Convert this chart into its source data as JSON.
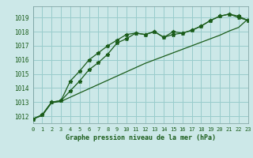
{
  "title": "Graphe pression niveau de la mer (hPa)",
  "bg_color": "#cce8e8",
  "grid_color": "#99cccc",
  "line_color": "#1a5c1a",
  "x_ticks": [
    0,
    1,
    2,
    3,
    4,
    5,
    6,
    7,
    8,
    9,
    10,
    11,
    12,
    13,
    14,
    15,
    16,
    17,
    18,
    19,
    20,
    21,
    22,
    23
  ],
  "ylim": [
    1011.5,
    1019.8
  ],
  "xlim": [
    0,
    23
  ],
  "y_ticks": [
    1012,
    1013,
    1014,
    1015,
    1016,
    1017,
    1018,
    1019
  ],
  "series1": [
    1011.8,
    1012.1,
    1013.0,
    1013.1,
    1013.8,
    1014.5,
    1015.3,
    1015.8,
    1016.4,
    1017.2,
    1017.5,
    1017.9,
    1017.8,
    1018.0,
    1017.6,
    1018.0,
    1017.9,
    1018.1,
    1018.4,
    1018.8,
    1019.1,
    1019.25,
    1019.0,
    1018.8
  ],
  "series2": [
    1011.8,
    1012.1,
    1013.0,
    1013.1,
    1014.5,
    1015.2,
    1016.0,
    1016.5,
    1017.0,
    1017.4,
    1017.8,
    1017.9,
    1017.8,
    1018.0,
    1017.6,
    1017.8,
    1017.9,
    1018.1,
    1018.4,
    1018.8,
    1019.1,
    1019.25,
    1019.1,
    1018.8
  ],
  "series3": [
    1011.8,
    1012.05,
    1012.95,
    1013.05,
    1013.35,
    1013.65,
    1013.95,
    1014.25,
    1014.55,
    1014.85,
    1015.15,
    1015.45,
    1015.75,
    1016.0,
    1016.25,
    1016.5,
    1016.75,
    1017.0,
    1017.25,
    1017.5,
    1017.75,
    1018.05,
    1018.3,
    1018.9
  ]
}
